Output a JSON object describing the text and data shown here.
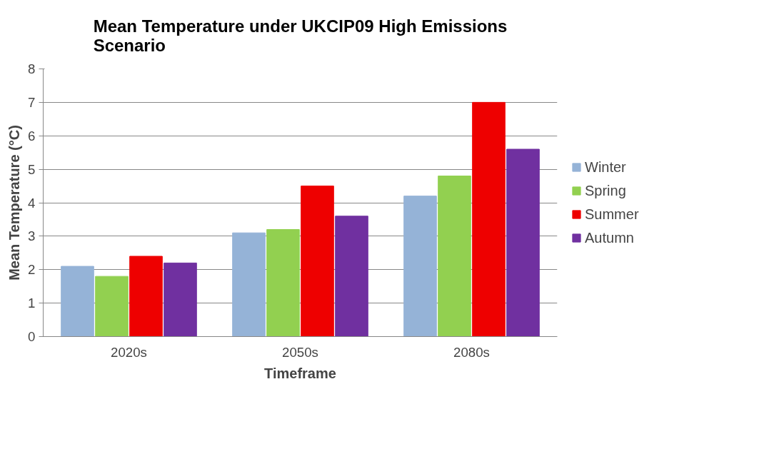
{
  "chart_data": {
    "type": "bar",
    "title": "Mean Temperature under UKCIP09 High Emissions Scenario",
    "xlabel": "Timeframe",
    "ylabel": "Mean Temperature (°C)",
    "categories": [
      "2020s",
      "2050s",
      "2080s"
    ],
    "series": [
      {
        "name": "Winter",
        "color": "#95b3d7",
        "values": [
          2.1,
          3.1,
          4.2
        ]
      },
      {
        "name": "Spring",
        "color": "#92d050",
        "values": [
          1.8,
          3.2,
          4.8
        ]
      },
      {
        "name": "Summer",
        "color": "#ee0000",
        "values": [
          2.4,
          4.5,
          7.0
        ]
      },
      {
        "name": "Autumn",
        "color": "#7030a0",
        "values": [
          2.2,
          3.6,
          5.6
        ]
      }
    ],
    "ylim": [
      0,
      8
    ],
    "yticks": [
      0,
      1,
      2,
      3,
      4,
      5,
      6,
      7,
      8
    ],
    "grid": "y",
    "legend": "right"
  }
}
